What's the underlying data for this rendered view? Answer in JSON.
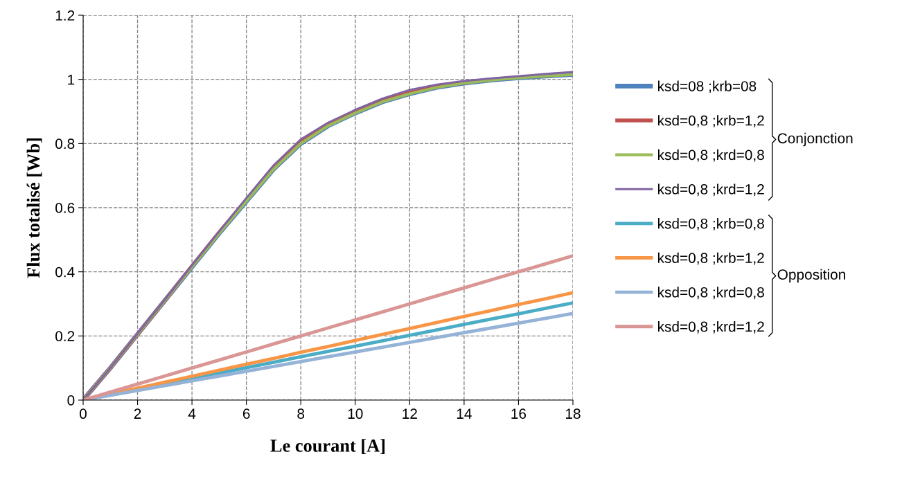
{
  "chart_data": {
    "type": "line",
    "xlabel": "Le courant [A]",
    "ylabel": "Flux totalisé [Wb]",
    "x": [
      0,
      1,
      2,
      3,
      4,
      5,
      6,
      7,
      8,
      9,
      10,
      11,
      12,
      13,
      14,
      15,
      16,
      17,
      18
    ],
    "series": [
      {
        "name": "ksd=08 ;krb=08",
        "color": "#4f81bd",
        "values": [
          0,
          0.1,
          0.205,
          0.31,
          0.415,
          0.52,
          0.62,
          0.72,
          0.8,
          0.855,
          0.895,
          0.93,
          0.955,
          0.975,
          0.988,
          0.998,
          1.005,
          1.01,
          1.015
        ]
      },
      {
        "name": "ksd=0,8 ;krb=1,2",
        "color": "#c0504d",
        "values": [
          0,
          0.1,
          0.205,
          0.31,
          0.418,
          0.523,
          0.625,
          0.727,
          0.806,
          0.858,
          0.898,
          0.933,
          0.958,
          0.977,
          0.99,
          1.0,
          null,
          null,
          null
        ]
      },
      {
        "name": "ksd=0,8 ;krd=0,8",
        "color": "#9bbb59",
        "values": [
          0,
          0.1,
          0.205,
          0.31,
          0.415,
          0.52,
          0.62,
          0.72,
          0.8,
          0.855,
          0.895,
          0.93,
          0.955,
          0.975,
          0.988,
          0.998,
          1.005,
          1.01,
          1.015
        ]
      },
      {
        "name": "ksd=0,8 ;krd=1,2",
        "color": "#8064a2",
        "values": [
          0,
          0.1,
          0.207,
          0.312,
          0.42,
          0.526,
          0.63,
          0.732,
          0.813,
          0.865,
          0.905,
          0.94,
          0.967,
          0.984,
          0.995,
          1.003,
          1.01,
          1.017,
          1.023
        ]
      },
      {
        "name": "ksd=0,8 ;krb=0,8",
        "color": "#4bacc6",
        "values": [
          0,
          0.017,
          0.034,
          0.05,
          0.067,
          0.084,
          0.101,
          0.118,
          0.135,
          0.152,
          0.168,
          0.185,
          0.202,
          0.219,
          0.236,
          0.253,
          0.269,
          0.286,
          0.303
        ]
      },
      {
        "name": "ksd=0,8 ;krb=1,2",
        "color": "#f79646",
        "values": [
          0,
          0.019,
          0.037,
          0.056,
          0.074,
          0.093,
          0.112,
          0.13,
          0.149,
          0.167,
          0.186,
          0.205,
          0.223,
          0.242,
          0.261,
          0.279,
          0.298,
          0.316,
          0.335
        ]
      },
      {
        "name": "ksd=0,8 ;krd=0,8",
        "color": "#95b3d7",
        "values": [
          0,
          0.015,
          0.03,
          0.045,
          0.06,
          0.075,
          0.09,
          0.105,
          0.12,
          0.135,
          0.15,
          0.165,
          0.18,
          0.195,
          0.21,
          0.225,
          0.24,
          0.255,
          0.27
        ]
      },
      {
        "name": "ksd=0,8 ;krd=1,2",
        "color": "#d99694",
        "values": [
          0,
          0.025,
          0.05,
          0.075,
          0.1,
          0.125,
          0.15,
          0.175,
          0.2,
          0.225,
          0.25,
          0.275,
          0.3,
          0.325,
          0.35,
          0.375,
          0.4,
          0.425,
          0.45
        ]
      }
    ],
    "xlim": [
      0,
      18
    ],
    "xticks": [
      0,
      2,
      4,
      6,
      8,
      10,
      12,
      14,
      16,
      18
    ],
    "ylim": [
      0,
      1.2
    ],
    "yticks": [
      0,
      0.2,
      0.4,
      0.6,
      0.8,
      1,
      1.2
    ],
    "grid": true,
    "legend": "right",
    "marker": "none",
    "line_style": "solid",
    "annotations": [
      "Conjonction",
      "Opposition"
    ]
  }
}
